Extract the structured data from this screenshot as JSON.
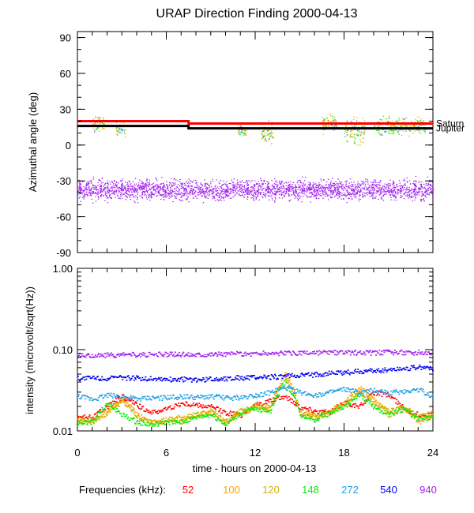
{
  "title": "URAP Direction Finding  2000-04-13",
  "chart_data": [
    {
      "type": "scatter",
      "panel": "top",
      "ylabel": "Azimuthal angle (deg)",
      "ylim": [
        -90,
        95
      ],
      "yticks": [
        90,
        60,
        30,
        0,
        -30,
        -60,
        -90
      ],
      "xlim": [
        0,
        24
      ],
      "reference_lines": [
        {
          "name": "Saturn",
          "color": "#ff0000",
          "segments": [
            {
              "x": [
                0,
                7.5
              ],
              "y": 20
            },
            {
              "x": [
                7.5,
                24
              ],
              "y": 18
            }
          ]
        },
        {
          "name": "Jupiter",
          "color": "#000000",
          "segments": [
            {
              "x": [
                0,
                7.5
              ],
              "y": 16
            },
            {
              "x": [
                7.5,
                24
              ],
              "y": 14
            }
          ]
        }
      ],
      "clusters": [
        {
          "name": "940 kHz band",
          "color": "#a020f0",
          "x": [
            0,
            24
          ],
          "y_center": -37,
          "y_spread": 8
        },
        {
          "name": "burst 1",
          "x": [
            1.0,
            1.8
          ],
          "y_center": 18,
          "y_spread": 6
        },
        {
          "name": "burst 2",
          "x": [
            2.6,
            3.2
          ],
          "y_center": 14,
          "y_spread": 6
        },
        {
          "name": "burst 3",
          "x": [
            10.8,
            11.4
          ],
          "y_center": 12,
          "y_spread": 6
        },
        {
          "name": "burst 4",
          "x": [
            12.4,
            13.2
          ],
          "y_center": 10,
          "y_spread": 8
        },
        {
          "name": "burst 5",
          "x": [
            16.5,
            17.5
          ],
          "y_center": 18,
          "y_spread": 7
        },
        {
          "name": "burst 6",
          "x": [
            18.0,
            19.4
          ],
          "y_center": 12,
          "y_spread": 10
        },
        {
          "name": "burst 7",
          "x": [
            20.0,
            23.5
          ],
          "y_center": 16,
          "y_spread": 7
        }
      ]
    },
    {
      "type": "line",
      "panel": "bottom",
      "ylabel": "intensity (microvolt/sqrt(Hz))",
      "yscale": "log",
      "ylim": [
        0.01,
        1.0
      ],
      "yticks": [
        {
          "value": 1.0,
          "label": "1.00"
        },
        {
          "value": 0.1,
          "label": "0.10"
        },
        {
          "value": 0.01,
          "label": "0.01"
        }
      ],
      "xlabel": "time - hours on 2000-04-13",
      "xlim": [
        0,
        24
      ],
      "xticks": [
        "0",
        "6",
        "12",
        "18",
        "24"
      ],
      "series": [
        {
          "name": "52",
          "color": "#ff0000",
          "values": [
            0.015,
            0.015,
            0.02,
            0.027,
            0.021,
            0.017,
            0.019,
            0.022,
            0.021,
            0.02,
            0.017,
            0.016,
            0.021,
            0.024,
            0.027,
            0.02,
            0.018,
            0.017,
            0.023,
            0.02,
            0.03,
            0.028,
            0.019,
            0.016,
            0.016
          ]
        },
        {
          "name": "100",
          "color": "#ffa500",
          "values": [
            0.013,
            0.013,
            0.017,
            0.025,
            0.016,
            0.013,
            0.013,
            0.013,
            0.016,
            0.018,
            0.013,
            0.016,
            0.02,
            0.019,
            0.05,
            0.016,
            0.015,
            0.017,
            0.022,
            0.035,
            0.025,
            0.016,
            0.019,
            0.013,
            0.016
          ]
        },
        {
          "name": "120",
          "color": "#d2b000",
          "values": [
            0.014,
            0.014,
            0.018,
            0.023,
            0.015,
            0.013,
            0.014,
            0.015,
            0.016,
            0.017,
            0.013,
            0.018,
            0.021,
            0.02,
            0.045,
            0.017,
            0.016,
            0.018,
            0.021,
            0.03,
            0.022,
            0.018,
            0.02,
            0.015,
            0.017
          ]
        },
        {
          "name": "148",
          "color": "#00ee00",
          "values": [
            0.013,
            0.013,
            0.022,
            0.016,
            0.013,
            0.012,
            0.013,
            0.013,
            0.015,
            0.016,
            0.012,
            0.017,
            0.019,
            0.018,
            0.04,
            0.016,
            0.014,
            0.017,
            0.02,
            0.028,
            0.02,
            0.016,
            0.019,
            0.014,
            0.015
          ]
        },
        {
          "name": "272",
          "color": "#1e9fe6",
          "values": [
            0.027,
            0.025,
            0.028,
            0.027,
            0.025,
            0.026,
            0.026,
            0.027,
            0.026,
            0.027,
            0.026,
            0.026,
            0.028,
            0.03,
            0.035,
            0.03,
            0.028,
            0.03,
            0.033,
            0.03,
            0.032,
            0.03,
            0.031,
            0.033,
            0.026
          ]
        },
        {
          "name": "540",
          "color": "#0000ee",
          "values": [
            0.045,
            0.046,
            0.045,
            0.046,
            0.045,
            0.045,
            0.044,
            0.044,
            0.043,
            0.044,
            0.045,
            0.046,
            0.046,
            0.047,
            0.048,
            0.049,
            0.05,
            0.052,
            0.053,
            0.055,
            0.056,
            0.058,
            0.06,
            0.062,
            0.06
          ]
        },
        {
          "name": "940",
          "color": "#a020f0",
          "values": [
            0.085,
            0.086,
            0.087,
            0.087,
            0.088,
            0.088,
            0.089,
            0.089,
            0.089,
            0.09,
            0.09,
            0.09,
            0.091,
            0.092,
            0.092,
            0.092,
            0.092,
            0.093,
            0.093,
            0.093,
            0.093,
            0.094,
            0.094,
            0.094,
            0.094
          ]
        }
      ],
      "x": [
        0,
        1,
        2,
        3,
        4,
        5,
        6,
        7,
        8,
        9,
        10,
        11,
        12,
        13,
        14,
        15,
        16,
        17,
        18,
        19,
        20,
        21,
        22,
        23,
        24
      ],
      "legend": {
        "label": "Frequencies (kHz):",
        "placement": "bottom"
      }
    }
  ]
}
